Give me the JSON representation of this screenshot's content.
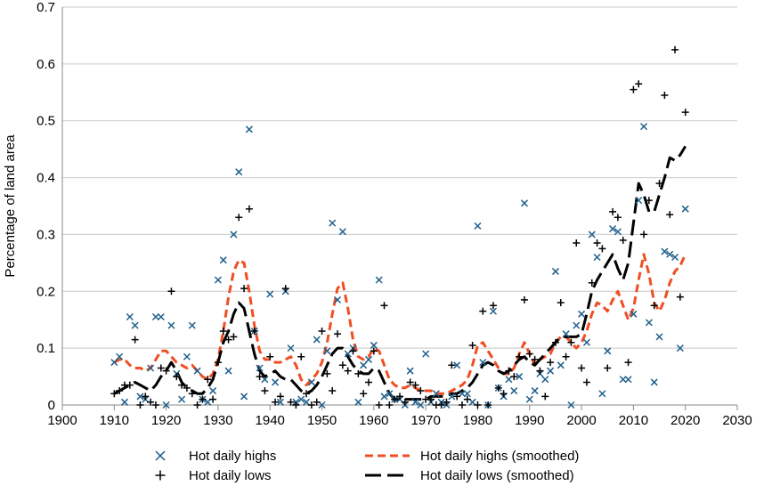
{
  "chart_data": {
    "type": "scatter",
    "title": "",
    "xlabel": "",
    "ylabel": "Percentage of land area",
    "xlim": [
      1900,
      2030
    ],
    "ylim": [
      0,
      0.7
    ],
    "x_ticks": [
      1900,
      1910,
      1920,
      1930,
      1940,
      1950,
      1960,
      1970,
      1980,
      1990,
      2000,
      2010,
      2020,
      2030
    ],
    "y_ticks": [
      0,
      0.1,
      0.2,
      0.3,
      0.4,
      0.5,
      0.6,
      0.7
    ],
    "y_tick_labels": [
      "0",
      "0.1",
      "0.2",
      "0.3",
      "0.4",
      "0.5",
      "0.6",
      "0.7"
    ],
    "grid": "horizontal",
    "legend_position": "bottom",
    "colors": {
      "highs": "#1f5f8b",
      "lows": "#000000",
      "highs_smoothed": "#f04e23",
      "lows_smoothed": "#000000",
      "grid": "#c8c8c8"
    },
    "series": [
      {
        "name": "Hot daily highs",
        "kind": "scatter",
        "marker": "x",
        "x": [
          1910,
          1911,
          1912,
          1913,
          1914,
          1915,
          1916,
          1917,
          1918,
          1919,
          1920,
          1921,
          1922,
          1923,
          1924,
          1925,
          1926,
          1927,
          1928,
          1929,
          1930,
          1931,
          1932,
          1933,
          1934,
          1935,
          1936,
          1937,
          1938,
          1939,
          1940,
          1941,
          1942,
          1943,
          1944,
          1945,
          1946,
          1947,
          1948,
          1949,
          1950,
          1951,
          1952,
          1953,
          1954,
          1955,
          1956,
          1957,
          1958,
          1959,
          1960,
          1961,
          1962,
          1963,
          1964,
          1965,
          1966,
          1967,
          1968,
          1969,
          1970,
          1971,
          1972,
          1973,
          1974,
          1975,
          1976,
          1977,
          1978,
          1979,
          1980,
          1981,
          1982,
          1983,
          1984,
          1985,
          1986,
          1987,
          1988,
          1989,
          1990,
          1991,
          1992,
          1993,
          1994,
          1995,
          1996,
          1997,
          1998,
          1999,
          2000,
          2001,
          2002,
          2003,
          2004,
          2005,
          2006,
          2007,
          2008,
          2009,
          2010,
          2011,
          2012,
          2013,
          2014,
          2015,
          2016,
          2017,
          2018,
          2019,
          2020
        ],
        "y": [
          0.075,
          0.085,
          0.005,
          0.155,
          0.14,
          0.015,
          0.01,
          0.065,
          0.155,
          0.155,
          0.0,
          0.14,
          0.055,
          0.01,
          0.085,
          0.14,
          0.06,
          0.01,
          0.005,
          0.025,
          0.22,
          0.255,
          0.06,
          0.3,
          0.41,
          0.015,
          0.485,
          0.13,
          0.065,
          0.045,
          0.195,
          0.04,
          0.005,
          0.2,
          0.1,
          0.005,
          0.01,
          0.005,
          0.04,
          0.115,
          0.0,
          0.095,
          0.32,
          0.185,
          0.305,
          0.09,
          0.1,
          0.005,
          0.07,
          0.08,
          0.105,
          0.22,
          0.015,
          0.02,
          0.01,
          0.01,
          0.0,
          0.06,
          0.005,
          0.0,
          0.09,
          0.005,
          0.02,
          0.005,
          0.0,
          0.015,
          0.07,
          0.02,
          0.02,
          0.005,
          0.315,
          0.075,
          0.0,
          0.165,
          0.03,
          0.015,
          0.045,
          0.025,
          0.05,
          0.355,
          0.01,
          0.025,
          0.055,
          0.045,
          0.06,
          0.235,
          0.07,
          0.125,
          0.0,
          0.14,
          0.16,
          0.11,
          0.3,
          0.26,
          0.02,
          0.095,
          0.31,
          0.305,
          0.045,
          0.045,
          0.16,
          0.36,
          0.49,
          0.145,
          0.04,
          0.12,
          0.27,
          0.265,
          0.26,
          0.1,
          0.345
        ]
      },
      {
        "name": "Hot daily lows",
        "kind": "scatter",
        "marker": "+",
        "x": [
          1910,
          1911,
          1912,
          1913,
          1914,
          1915,
          1916,
          1917,
          1918,
          1919,
          1920,
          1921,
          1922,
          1923,
          1924,
          1925,
          1926,
          1927,
          1928,
          1929,
          1930,
          1931,
          1932,
          1933,
          1934,
          1935,
          1936,
          1937,
          1938,
          1939,
          1940,
          1941,
          1942,
          1943,
          1944,
          1945,
          1946,
          1947,
          1948,
          1949,
          1950,
          1951,
          1952,
          1953,
          1954,
          1955,
          1956,
          1957,
          1958,
          1959,
          1960,
          1961,
          1962,
          1963,
          1964,
          1965,
          1966,
          1967,
          1968,
          1969,
          1970,
          1971,
          1972,
          1973,
          1974,
          1975,
          1976,
          1977,
          1978,
          1979,
          1980,
          1981,
          1982,
          1983,
          1984,
          1985,
          1986,
          1987,
          1988,
          1989,
          1990,
          1991,
          1992,
          1993,
          1994,
          1995,
          1996,
          1997,
          1998,
          1999,
          2000,
          2001,
          2002,
          2003,
          2004,
          2005,
          2006,
          2007,
          2008,
          2009,
          2010,
          2011,
          2012,
          2013,
          2014,
          2015,
          2016,
          2017,
          2018,
          2019,
          2020
        ],
        "y": [
          0.02,
          0.025,
          0.035,
          0.035,
          0.115,
          0.0,
          0.015,
          0.005,
          0.0,
          0.065,
          0.06,
          0.2,
          0.05,
          0.035,
          0.03,
          0.02,
          0.0,
          0.01,
          0.045,
          0.01,
          0.075,
          0.13,
          0.115,
          0.12,
          0.33,
          0.205,
          0.345,
          0.13,
          0.05,
          0.025,
          0.085,
          0.005,
          0.015,
          0.205,
          0.005,
          0.0,
          0.085,
          0.02,
          0.0,
          0.005,
          0.13,
          0.055,
          0.025,
          0.125,
          0.07,
          0.06,
          0.095,
          0.055,
          0.02,
          0.04,
          0.095,
          0.0,
          0.175,
          0.0,
          0.01,
          0.015,
          0.005,
          0.04,
          0.035,
          0.025,
          0.01,
          0.01,
          0.0,
          0.0,
          0.005,
          0.07,
          0.015,
          0.0,
          0.01,
          0.105,
          0.0,
          0.165,
          0.0,
          0.175,
          0.03,
          0.02,
          0.06,
          0.05,
          0.085,
          0.185,
          0.09,
          0.08,
          0.06,
          0.015,
          0.075,
          0.11,
          0.18,
          0.085,
          0.11,
          0.285,
          0.065,
          0.04,
          0.215,
          0.285,
          0.275,
          0.065,
          0.34,
          0.33,
          0.29,
          0.075,
          0.555,
          0.565,
          0.3,
          0.36,
          0.175,
          0.39,
          0.545,
          0.335,
          0.625,
          0.19,
          0.515
        ]
      },
      {
        "name": "Hot daily highs (smoothed)",
        "kind": "line",
        "dash": "short",
        "x": [
          1910,
          1911,
          1912,
          1913,
          1914,
          1915,
          1916,
          1917,
          1918,
          1919,
          1920,
          1921,
          1922,
          1923,
          1924,
          1925,
          1926,
          1927,
          1928,
          1929,
          1930,
          1931,
          1932,
          1933,
          1934,
          1935,
          1936,
          1937,
          1938,
          1939,
          1940,
          1941,
          1942,
          1943,
          1944,
          1945,
          1946,
          1947,
          1948,
          1949,
          1950,
          1951,
          1952,
          1953,
          1954,
          1955,
          1956,
          1957,
          1958,
          1959,
          1960,
          1961,
          1962,
          1963,
          1964,
          1965,
          1966,
          1967,
          1968,
          1969,
          1970,
          1971,
          1972,
          1973,
          1974,
          1975,
          1976,
          1977,
          1978,
          1979,
          1980,
          1981,
          1982,
          1983,
          1984,
          1985,
          1986,
          1987,
          1988,
          1989,
          1990,
          1991,
          1992,
          1993,
          1994,
          1995,
          1996,
          1997,
          1998,
          1999,
          2000,
          2001,
          2002,
          2003,
          2004,
          2005,
          2006,
          2007,
          2008,
          2009,
          2010,
          2011,
          2012,
          2013,
          2014,
          2015,
          2016,
          2017,
          2018,
          2019,
          2020
        ],
        "y": [
          0.075,
          0.08,
          0.08,
          0.07,
          0.065,
          0.065,
          0.06,
          0.065,
          0.08,
          0.095,
          0.095,
          0.085,
          0.075,
          0.07,
          0.065,
          0.07,
          0.06,
          0.05,
          0.045,
          0.055,
          0.08,
          0.13,
          0.19,
          0.235,
          0.255,
          0.25,
          0.2,
          0.14,
          0.095,
          0.08,
          0.08,
          0.075,
          0.075,
          0.08,
          0.085,
          0.07,
          0.045,
          0.035,
          0.045,
          0.055,
          0.075,
          0.11,
          0.16,
          0.205,
          0.215,
          0.17,
          0.115,
          0.085,
          0.08,
          0.085,
          0.1,
          0.095,
          0.07,
          0.045,
          0.035,
          0.03,
          0.03,
          0.035,
          0.03,
          0.025,
          0.025,
          0.025,
          0.02,
          0.02,
          0.02,
          0.025,
          0.03,
          0.035,
          0.045,
          0.07,
          0.105,
          0.11,
          0.095,
          0.08,
          0.065,
          0.055,
          0.055,
          0.065,
          0.09,
          0.11,
          0.09,
          0.07,
          0.08,
          0.085,
          0.09,
          0.11,
          0.12,
          0.12,
          0.11,
          0.1,
          0.11,
          0.13,
          0.16,
          0.18,
          0.175,
          0.165,
          0.185,
          0.2,
          0.175,
          0.15,
          0.17,
          0.22,
          0.265,
          0.23,
          0.18,
          0.165,
          0.185,
          0.215,
          0.235,
          0.245,
          0.265
        ]
      },
      {
        "name": "Hot daily lows (smoothed)",
        "kind": "line",
        "dash": "long",
        "x": [
          1910,
          1911,
          1912,
          1913,
          1914,
          1915,
          1916,
          1917,
          1918,
          1919,
          1920,
          1921,
          1922,
          1923,
          1924,
          1925,
          1926,
          1927,
          1928,
          1929,
          1930,
          1931,
          1932,
          1933,
          1934,
          1935,
          1936,
          1937,
          1938,
          1939,
          1940,
          1941,
          1942,
          1943,
          1944,
          1945,
          1946,
          1947,
          1948,
          1949,
          1950,
          1951,
          1952,
          1953,
          1954,
          1955,
          1956,
          1957,
          1958,
          1959,
          1960,
          1961,
          1962,
          1963,
          1964,
          1965,
          1966,
          1967,
          1968,
          1969,
          1970,
          1971,
          1972,
          1973,
          1974,
          1975,
          1976,
          1977,
          1978,
          1979,
          1980,
          1981,
          1982,
          1983,
          1984,
          1985,
          1986,
          1987,
          1988,
          1989,
          1990,
          1991,
          1992,
          1993,
          1994,
          1995,
          1996,
          1997,
          1998,
          1999,
          2000,
          2001,
          2002,
          2003,
          2004,
          2005,
          2006,
          2007,
          2008,
          2009,
          2010,
          2011,
          2012,
          2013,
          2014,
          2015,
          2016,
          2017,
          2018,
          2019,
          2020
        ],
        "y": [
          0.02,
          0.025,
          0.03,
          0.035,
          0.04,
          0.035,
          0.03,
          0.025,
          0.035,
          0.05,
          0.06,
          0.075,
          0.06,
          0.04,
          0.03,
          0.025,
          0.02,
          0.02,
          0.03,
          0.045,
          0.075,
          0.11,
          0.13,
          0.16,
          0.18,
          0.17,
          0.13,
          0.09,
          0.06,
          0.05,
          0.055,
          0.06,
          0.05,
          0.045,
          0.045,
          0.035,
          0.025,
          0.02,
          0.025,
          0.035,
          0.05,
          0.07,
          0.09,
          0.1,
          0.1,
          0.085,
          0.07,
          0.06,
          0.055,
          0.055,
          0.065,
          0.06,
          0.04,
          0.02,
          0.01,
          0.01,
          0.01,
          0.01,
          0.01,
          0.01,
          0.01,
          0.015,
          0.015,
          0.015,
          0.015,
          0.02,
          0.02,
          0.025,
          0.03,
          0.04,
          0.055,
          0.07,
          0.075,
          0.07,
          0.06,
          0.055,
          0.06,
          0.07,
          0.08,
          0.085,
          0.075,
          0.07,
          0.08,
          0.09,
          0.1,
          0.11,
          0.12,
          0.12,
          0.12,
          0.12,
          0.125,
          0.16,
          0.2,
          0.22,
          0.235,
          0.25,
          0.265,
          0.24,
          0.22,
          0.25,
          0.32,
          0.39,
          0.37,
          0.34,
          0.34,
          0.37,
          0.4,
          0.435,
          0.43,
          0.44,
          0.455
        ]
      }
    ]
  }
}
